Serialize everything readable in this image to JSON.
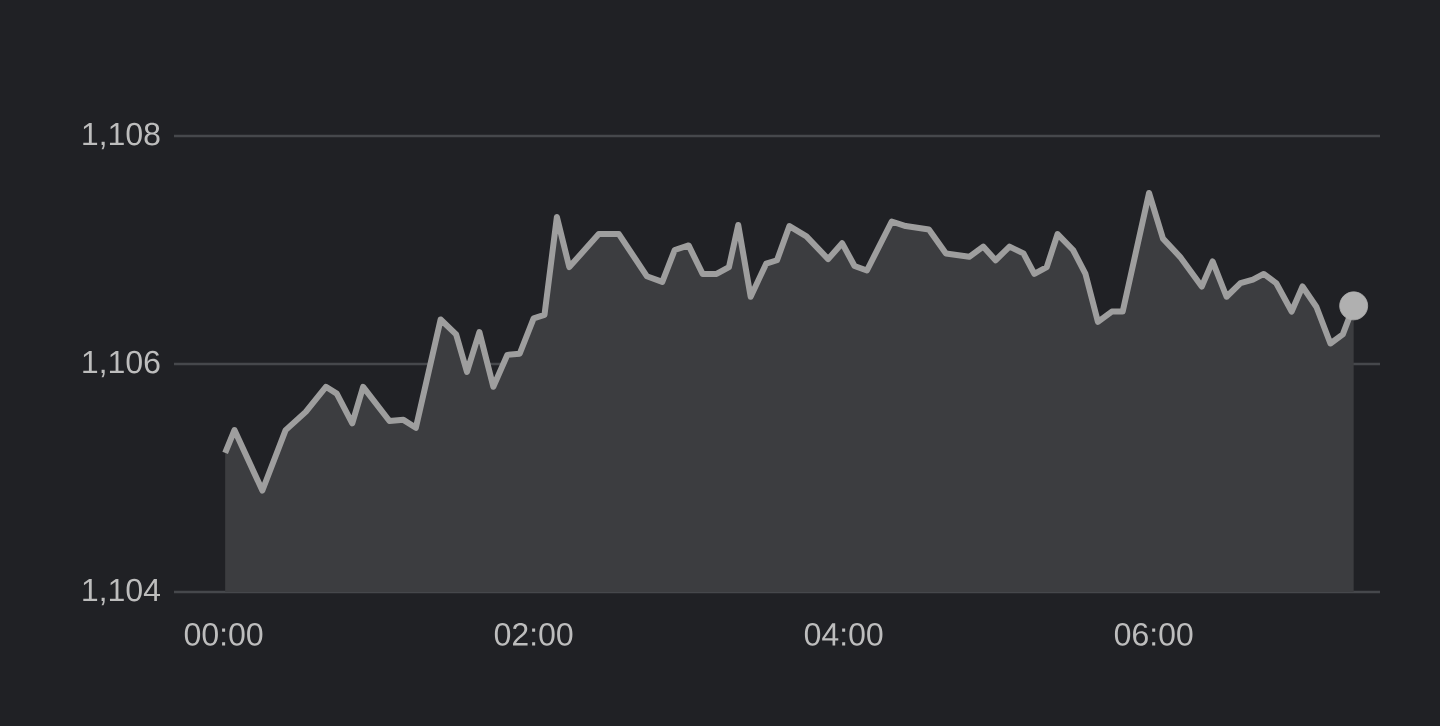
{
  "chart_data": {
    "type": "area",
    "xlim": [
      -0.32,
      7.46
    ],
    "ylim": [
      1104,
      1108
    ],
    "xticks": [
      {
        "value": 0,
        "label": "00:00"
      },
      {
        "value": 2,
        "label": "02:00"
      },
      {
        "value": 4,
        "label": "04:00"
      },
      {
        "value": 6,
        "label": "06:00"
      }
    ],
    "yticks": [
      {
        "value": 1104,
        "label": "1,104"
      },
      {
        "value": 1106,
        "label": "1,106"
      },
      {
        "value": 1108,
        "label": "1,108"
      }
    ],
    "grid": "y",
    "series": [
      {
        "color": "#9e9e9e",
        "line_style": "solid",
        "x": [
          0.01,
          0.07,
          0.25,
          0.4,
          0.53,
          0.66,
          0.73,
          0.83,
          0.9,
          1.07,
          1.16,
          1.24,
          1.4,
          1.5,
          1.57,
          1.65,
          1.74,
          1.83,
          1.91,
          2.0,
          2.07,
          2.15,
          2.23,
          2.42,
          2.55,
          2.73,
          2.83,
          2.91,
          3.0,
          3.09,
          3.18,
          3.26,
          3.32,
          3.4,
          3.5,
          3.57,
          3.65,
          3.76,
          3.9,
          3.99,
          4.07,
          4.15,
          4.31,
          4.4,
          4.55,
          4.66,
          4.81,
          4.9,
          4.98,
          5.07,
          5.16,
          5.23,
          5.31,
          5.38,
          5.48,
          5.56,
          5.64,
          5.73,
          5.8,
          5.97,
          6.06,
          6.17,
          6.31,
          6.38,
          6.47,
          6.56,
          6.64,
          6.71,
          6.79,
          6.89,
          6.96,
          7.05,
          7.14,
          7.22,
          7.29
        ],
        "values": [
          1105.22,
          1105.42,
          1104.89,
          1105.42,
          1105.58,
          1105.8,
          1105.74,
          1105.48,
          1105.8,
          1105.5,
          1105.51,
          1105.44,
          1106.39,
          1106.26,
          1105.93,
          1106.28,
          1105.8,
          1106.08,
          1106.09,
          1106.4,
          1106.43,
          1107.29,
          1106.85,
          1107.14,
          1107.14,
          1106.77,
          1106.72,
          1107.0,
          1107.04,
          1106.79,
          1106.79,
          1106.85,
          1107.22,
          1106.59,
          1106.88,
          1106.91,
          1107.21,
          1107.12,
          1106.92,
          1107.06,
          1106.86,
          1106.82,
          1107.25,
          1107.21,
          1107.18,
          1106.97,
          1106.94,
          1107.03,
          1106.91,
          1107.03,
          1106.97,
          1106.79,
          1106.85,
          1107.14,
          1107.0,
          1106.79,
          1106.37,
          1106.46,
          1106.46,
          1107.5,
          1107.1,
          1106.94,
          1106.68,
          1106.9,
          1106.59,
          1106.71,
          1106.74,
          1106.79,
          1106.71,
          1106.46,
          1106.68,
          1106.5,
          1106.18,
          1106.26,
          1106.51
        ]
      },
      {
        "type": "scatter",
        "color": "#b0b0b0",
        "marker": "circle",
        "x": [
          7.29
        ],
        "values": [
          1106.51
        ]
      }
    ]
  }
}
